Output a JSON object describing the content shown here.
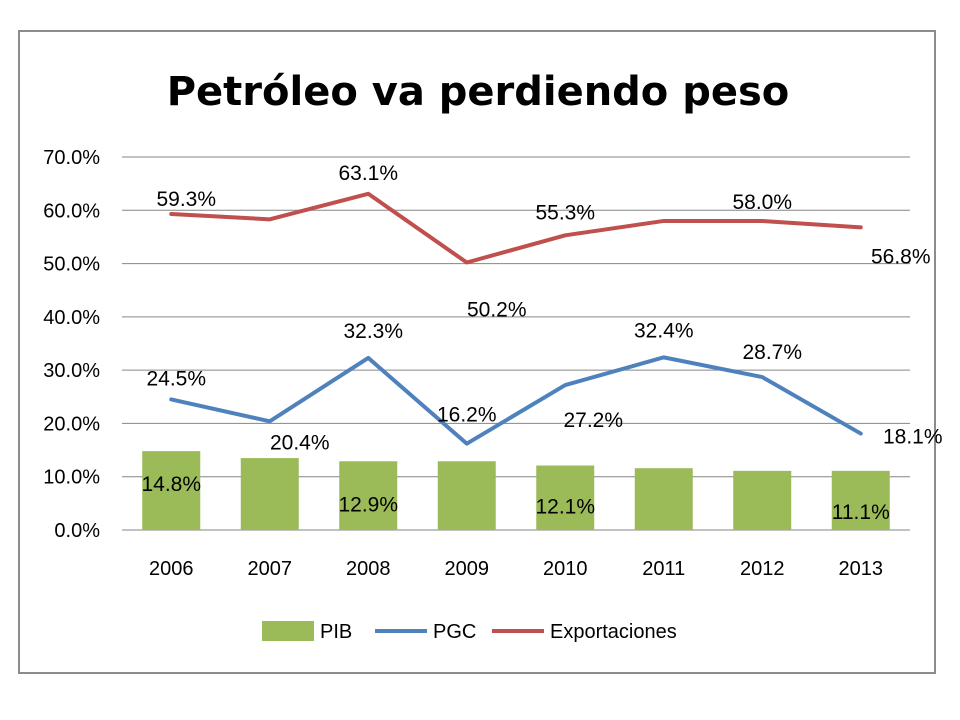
{
  "chart_data": {
    "type": "bar",
    "title": "Petróleo va perdiendo peso",
    "categories": [
      "2006",
      "2007",
      "2008",
      "2009",
      "2010",
      "2011",
      "2012",
      "2013"
    ],
    "ylim": [
      0,
      70
    ],
    "y_ticks": [
      "0.0%",
      "10.0%",
      "20.0%",
      "30.0%",
      "40.0%",
      "50.0%",
      "60.0%",
      "70.0%"
    ],
    "grid": true,
    "legend_position": "bottom",
    "series": [
      {
        "name": "PIB",
        "type": "bar",
        "color": "#9bbb59",
        "values": [
          14.8,
          13.5,
          12.9,
          12.9,
          12.1,
          11.6,
          11.1,
          11.1
        ],
        "labels": [
          "14.8%",
          "",
          "12.9%",
          "",
          "12.1%",
          "",
          "",
          "11.1%"
        ]
      },
      {
        "name": "PGC",
        "type": "line",
        "color": "#4f81bd",
        "values": [
          24.5,
          20.4,
          32.3,
          16.2,
          27.2,
          32.4,
          28.7,
          18.1
        ],
        "labels": [
          "24.5%",
          "20.4%",
          "32.3%",
          "16.2%",
          "27.2%",
          "32.4%",
          "28.7%",
          "18.1%"
        ]
      },
      {
        "name": "Exportaciones",
        "type": "line",
        "color": "#c0504d",
        "values": [
          59.3,
          58.3,
          63.1,
          50.2,
          55.3,
          58.0,
          58.0,
          56.8
        ],
        "labels": [
          "59.3%",
          "",
          "63.1%",
          "50.2%",
          "55.3%",
          "",
          "58.0%",
          "56.8%"
        ]
      }
    ]
  }
}
